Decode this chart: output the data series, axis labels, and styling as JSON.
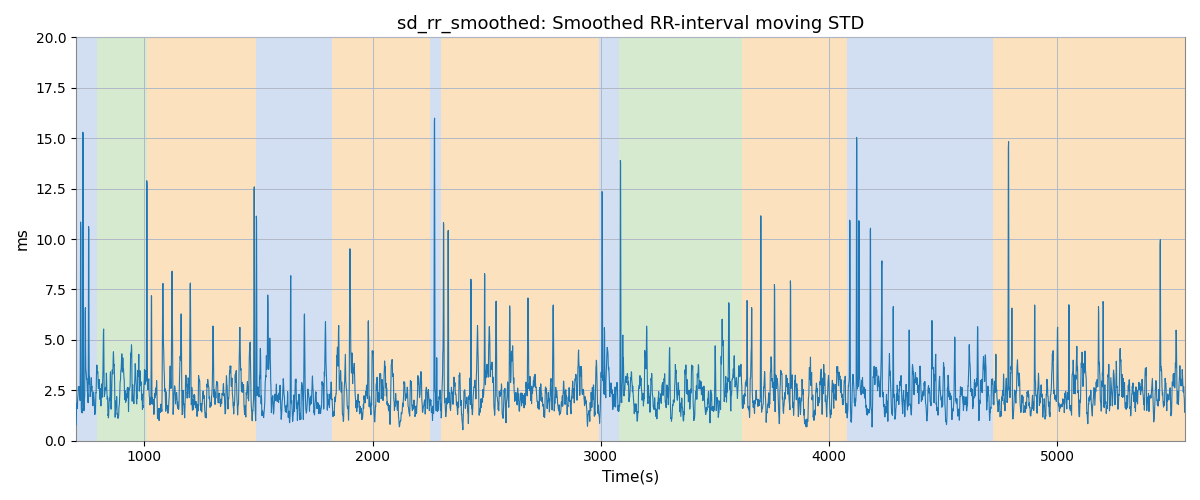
{
  "title": "sd_rr_smoothed: Smoothed RR-interval moving STD",
  "xlabel": "Time(s)",
  "ylabel": "ms",
  "xlim": [
    700,
    5560
  ],
  "ylim": [
    0,
    20
  ],
  "line_color": "#1f77b4",
  "line_width": 0.8,
  "background_color": "#ffffff",
  "grid_color": "#b0b8c8",
  "bands": [
    {
      "xmin": 700,
      "xmax": 790,
      "color": "#aec6e8",
      "alpha": 0.55
    },
    {
      "xmin": 790,
      "xmax": 1010,
      "color": "#b5d9a8",
      "alpha": 0.55
    },
    {
      "xmin": 1010,
      "xmax": 1490,
      "color": "#f9c98a",
      "alpha": 0.55
    },
    {
      "xmin": 1490,
      "xmax": 1820,
      "color": "#aec6e8",
      "alpha": 0.55
    },
    {
      "xmin": 1820,
      "xmax": 2250,
      "color": "#f9c98a",
      "alpha": 0.55
    },
    {
      "xmin": 2250,
      "xmax": 2300,
      "color": "#aec6e8",
      "alpha": 0.55
    },
    {
      "xmin": 2300,
      "xmax": 2990,
      "color": "#f9c98a",
      "alpha": 0.55
    },
    {
      "xmin": 2990,
      "xmax": 3080,
      "color": "#aec6e8",
      "alpha": 0.55
    },
    {
      "xmin": 3080,
      "xmax": 3620,
      "color": "#b5d9a8",
      "alpha": 0.55
    },
    {
      "xmin": 3620,
      "xmax": 3680,
      "color": "#f9c98a",
      "alpha": 0.55
    },
    {
      "xmin": 3680,
      "xmax": 4080,
      "color": "#f9c98a",
      "alpha": 0.55
    },
    {
      "xmin": 4080,
      "xmax": 4720,
      "color": "#aec6e8",
      "alpha": 0.55
    },
    {
      "xmin": 4720,
      "xmax": 4780,
      "color": "#f9c98a",
      "alpha": 0.55
    },
    {
      "xmin": 4780,
      "xmax": 5560,
      "color": "#f9c98a",
      "alpha": 0.55
    }
  ],
  "seed": 17,
  "n_points": 4860
}
